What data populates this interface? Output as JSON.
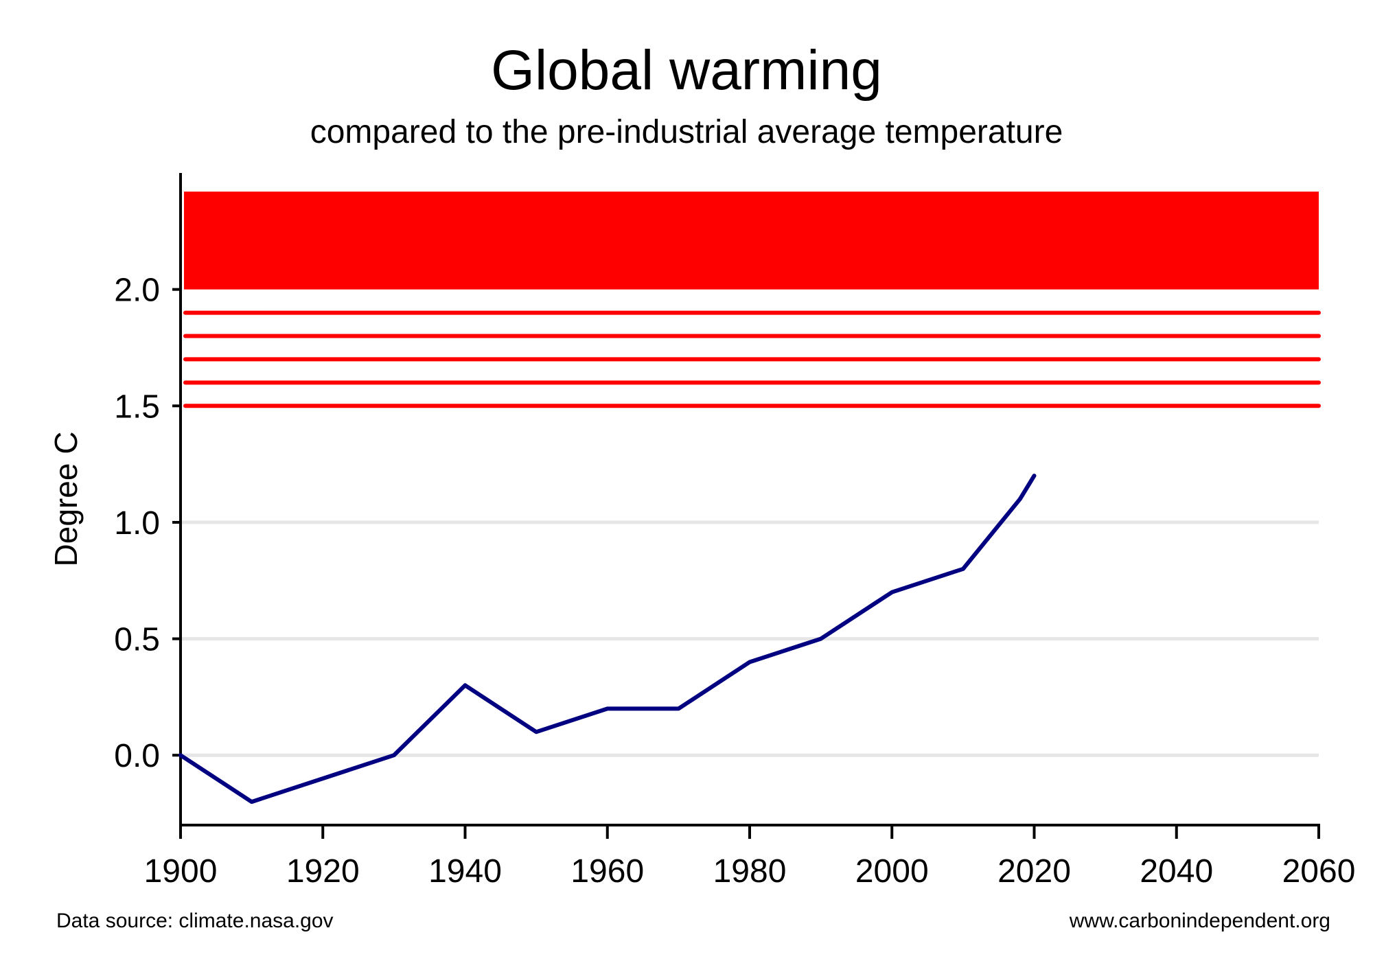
{
  "chart_data": {
    "type": "line",
    "title": "Global warming",
    "subtitle": "compared to the pre-industrial average temperature",
    "xlabel": "",
    "ylabel": "Degree C",
    "xlim": [
      1900,
      2060
    ],
    "ylim": [
      -0.3,
      2.5
    ],
    "x_ticks": [
      1900,
      1920,
      1940,
      1960,
      1980,
      2000,
      2020,
      2040,
      2060
    ],
    "y_ticks": [
      "0.0",
      "0.5",
      "1.0",
      "1.5",
      "2.0"
    ],
    "y_gridlines": [
      0.0,
      0.5,
      1.0
    ],
    "grid": "horizontal",
    "series": [
      {
        "color": "#000080",
        "points": [
          {
            "x": 1900,
            "y": 0.0
          },
          {
            "x": 1910,
            "y": -0.2
          },
          {
            "x": 1920,
            "y": -0.1
          },
          {
            "x": 1930,
            "y": 0.0
          },
          {
            "x": 1940,
            "y": 0.3
          },
          {
            "x": 1950,
            "y": 0.1
          },
          {
            "x": 1960,
            "y": 0.2
          },
          {
            "x": 1970,
            "y": 0.2
          },
          {
            "x": 1980,
            "y": 0.4
          },
          {
            "x": 1990,
            "y": 0.5
          },
          {
            "x": 2000,
            "y": 0.7
          },
          {
            "x": 2010,
            "y": 0.8
          },
          {
            "x": 2018,
            "y": 1.1
          },
          {
            "x": 2020,
            "y": 1.2
          }
        ]
      }
    ],
    "threshold_lines": [
      {
        "y": 1.5,
        "color": "#ff0000"
      },
      {
        "y": 1.6,
        "color": "#ff0000"
      },
      {
        "y": 1.7,
        "color": "#ff0000"
      },
      {
        "y": 1.8,
        "color": "#ff0000"
      },
      {
        "y": 1.9,
        "color": "#ff0000"
      }
    ],
    "danger_band": {
      "y_from": 2.0,
      "y_to": 2.42,
      "color": "#ff0000"
    }
  },
  "footer": {
    "source": "Data source: climate.nasa.gov",
    "website": "www.carbonindependent.org"
  }
}
